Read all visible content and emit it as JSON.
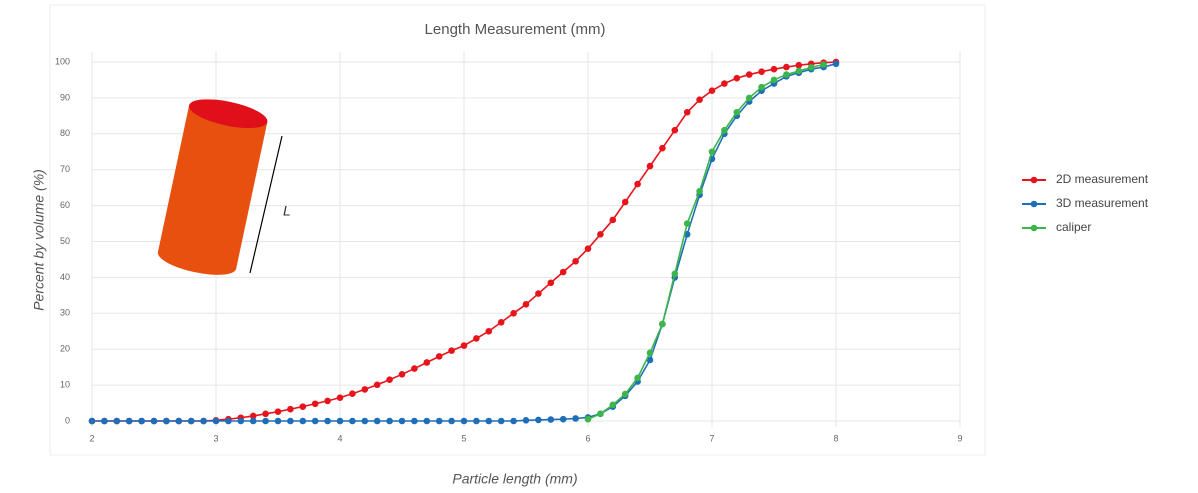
{
  "chart_data": {
    "type": "line",
    "title": "Length Measurement (mm)",
    "x_label": "Particle length (mm)",
    "y_label": "Percent by volume (%)",
    "annotation": "L",
    "x": [
      2.0,
      2.1,
      2.2,
      2.3,
      2.4,
      2.5,
      2.6,
      2.7,
      2.8,
      2.9,
      3.0,
      3.1,
      3.2,
      3.3,
      3.4,
      3.5,
      3.6,
      3.7,
      3.8,
      3.9,
      4.0,
      4.1,
      4.2,
      4.3,
      4.4,
      4.5,
      4.6,
      4.7,
      4.8,
      4.9,
      5.0,
      5.1,
      5.2,
      5.3,
      5.4,
      5.5,
      5.6,
      5.7,
      5.8,
      5.9,
      6.0,
      6.1,
      6.2,
      6.3,
      6.4,
      6.5,
      6.6,
      6.7,
      6.8,
      6.9,
      7.0,
      7.1,
      7.2,
      7.3,
      7.4,
      7.5,
      7.6,
      7.7,
      7.8,
      7.9,
      8.0
    ],
    "series": [
      {
        "name": "2D measurement",
        "color": "#e8141c",
        "values": [
          0,
          0,
          0,
          0,
          0,
          0,
          0,
          0,
          0,
          0,
          0.2,
          0.5,
          0.9,
          1.4,
          2,
          2.6,
          3.3,
          4,
          4.8,
          5.6,
          6.5,
          7.6,
          8.8,
          10.1,
          11.5,
          13,
          14.6,
          16.3,
          18,
          19.6,
          21,
          23,
          25,
          27.5,
          30,
          32.5,
          35.5,
          38.5,
          41.5,
          44.5,
          48,
          52,
          56,
          61,
          66,
          71,
          76,
          81,
          86,
          89.5,
          92,
          94,
          95.5,
          96.5,
          97.3,
          98,
          98.6,
          99.1,
          99.5,
          99.8,
          100
        ]
      },
      {
        "name": "3D measurement",
        "color": "#1f6fb8",
        "values": [
          0,
          0,
          0,
          0,
          0,
          0,
          0,
          0,
          0,
          0,
          0,
          0,
          0,
          0,
          0,
          0,
          0,
          0,
          0,
          0,
          0,
          0,
          0,
          0,
          0,
          0,
          0,
          0,
          0,
          0,
          0,
          0,
          0,
          0,
          0,
          0.2,
          0.3,
          0.4,
          0.5,
          0.7,
          1,
          2,
          4,
          7,
          11,
          17,
          27,
          40,
          52,
          63,
          73,
          80,
          85,
          89,
          92,
          94,
          96,
          97,
          98,
          98.6,
          99.5
        ]
      },
      {
        "name": "caliper",
        "color": "#3cb54a",
        "values": [
          null,
          null,
          null,
          null,
          null,
          null,
          null,
          null,
          null,
          null,
          null,
          null,
          null,
          null,
          null,
          null,
          null,
          null,
          null,
          null,
          null,
          null,
          null,
          null,
          null,
          null,
          null,
          null,
          null,
          null,
          null,
          null,
          null,
          null,
          null,
          null,
          null,
          null,
          null,
          null,
          0.5,
          2,
          4.5,
          7.5,
          12,
          19,
          27,
          41,
          55,
          64,
          75,
          81,
          86,
          90,
          93,
          95,
          96.5,
          97.5,
          98.5,
          99.3,
          null
        ]
      }
    ],
    "xlim": [
      2,
      9
    ],
    "xticks": [
      2,
      3,
      4,
      5,
      6,
      7,
      8,
      9
    ],
    "ylim": [
      0,
      100
    ],
    "yticks": [
      0,
      10,
      20,
      30,
      40,
      50,
      60,
      70,
      80,
      90,
      100
    ],
    "grid": true,
    "legend": "right"
  }
}
